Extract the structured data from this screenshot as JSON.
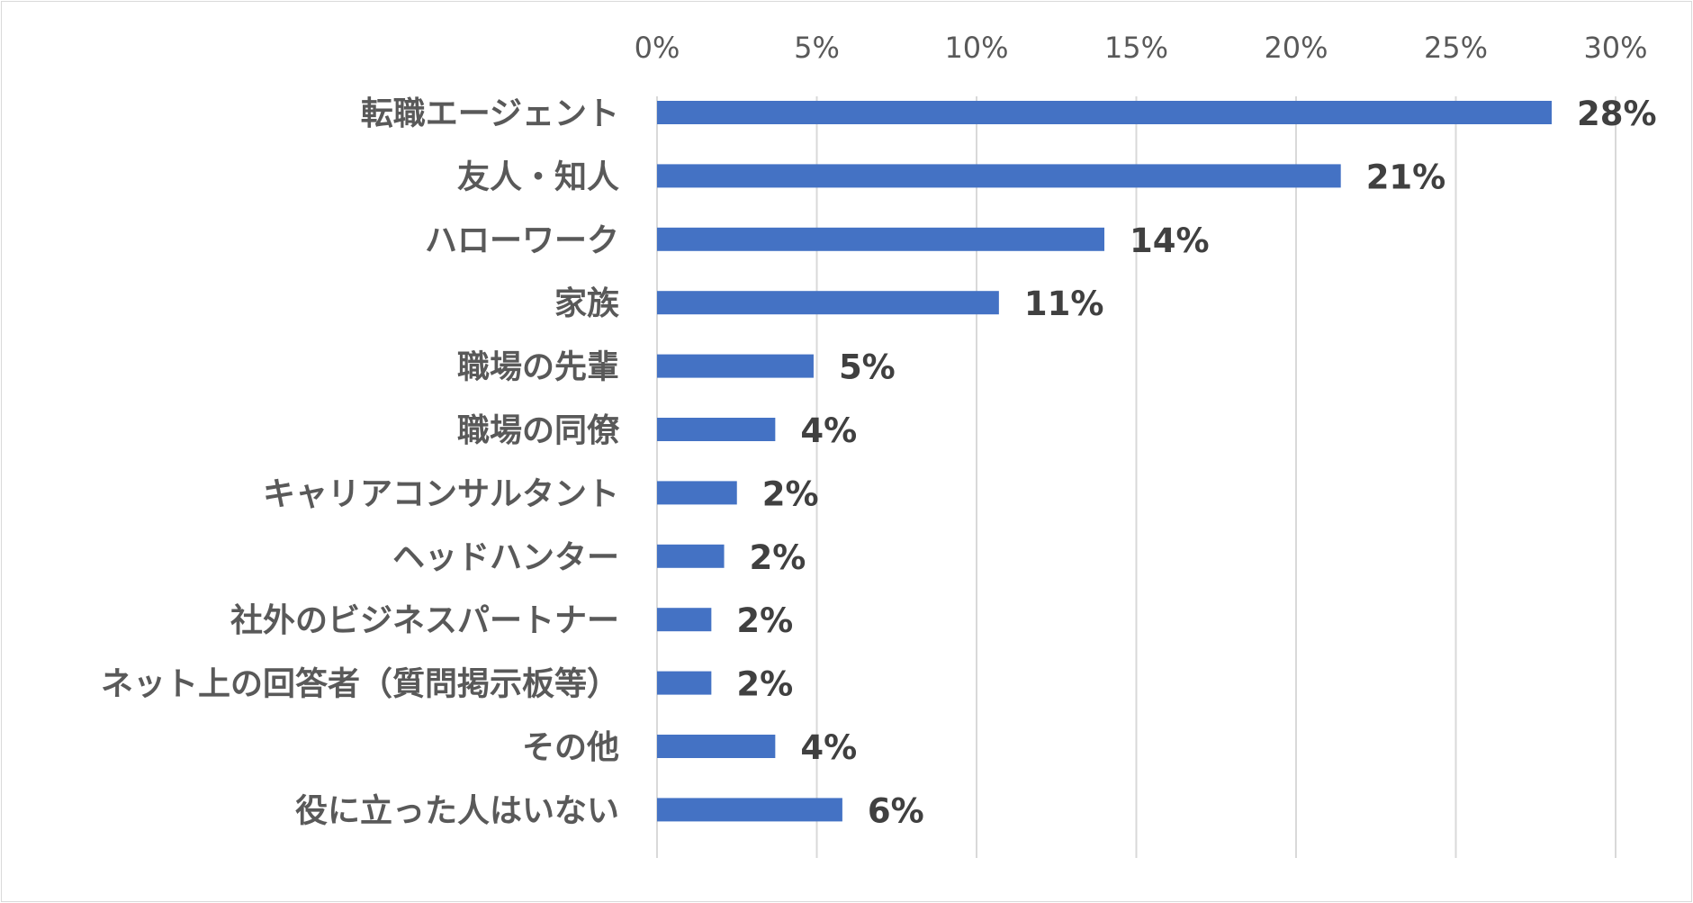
{
  "chart_data": {
    "type": "bar",
    "orientation": "horizontal",
    "categories": [
      "転職エージェント",
      "友人・知人",
      "ハローワーク",
      "家族",
      "職場の先輩",
      "職場の同僚",
      "キャリアコンサルタント",
      "ヘッドハンター",
      "社外のビジネスパートナー",
      "ネット上の回答者（質問掲示板等）",
      "その他",
      "役に立った人はいない"
    ],
    "values": [
      28,
      21.4,
      14,
      10.7,
      4.9,
      3.7,
      2.5,
      2.1,
      1.7,
      1.7,
      3.7,
      5.8
    ],
    "data_labels": [
      "28%",
      "21%",
      "14%",
      "11%",
      "5%",
      "4%",
      "2%",
      "2%",
      "2%",
      "2%",
      "4%",
      "6%"
    ],
    "x_ticks": [
      "0%",
      "5%",
      "10%",
      "15%",
      "20%",
      "25%",
      "30%"
    ],
    "xlim": [
      0,
      30
    ],
    "x_axis_position": "top",
    "grid": true,
    "bar_color": "#4472c4",
    "grid_color": "#d9d9d9",
    "title": "",
    "xlabel": "",
    "ylabel": ""
  }
}
